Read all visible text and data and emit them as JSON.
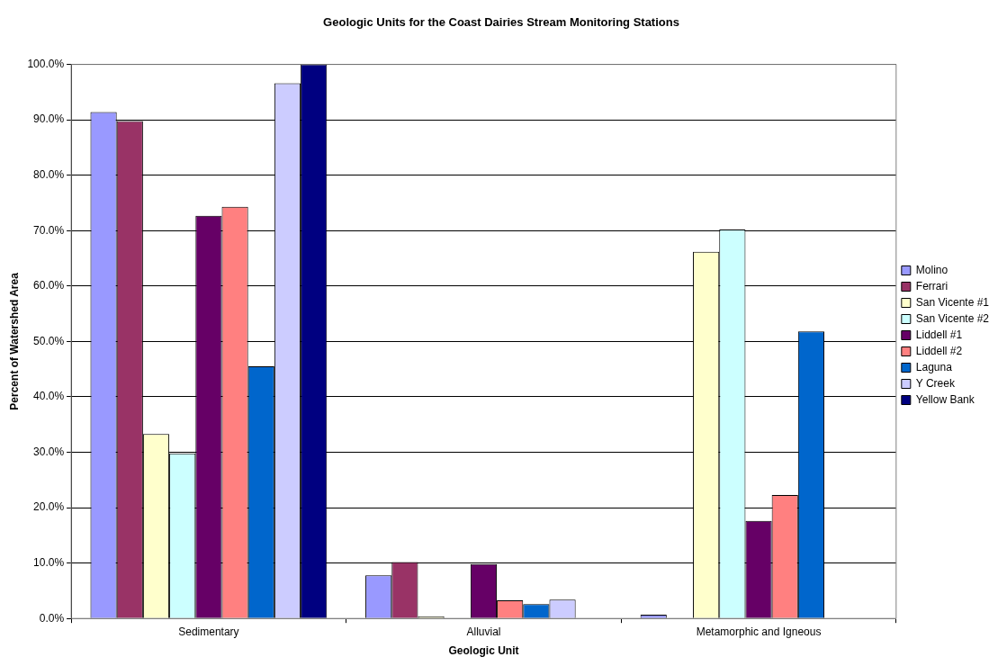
{
  "chart_data": {
    "type": "bar",
    "title": "Geologic Units for the Coast Dairies Stream Monitoring Stations",
    "xlabel": "Geologic Unit",
    "ylabel": "Percent of Watershed Area",
    "categories": [
      "Sedimentary",
      "Alluvial",
      "Metamorphic and Igneous"
    ],
    "series": [
      {
        "name": "Molino",
        "color": "#9999ff",
        "values": [
          91.4,
          7.8,
          0.7
        ]
      },
      {
        "name": "Ferrari",
        "color": "#993366",
        "values": [
          89.8,
          10.2,
          0
        ]
      },
      {
        "name": "San Vicente #1",
        "color": "#ffffcc",
        "values": [
          33.3,
          0.4,
          66.2
        ]
      },
      {
        "name": "San Vicente #2",
        "color": "#ccffff",
        "values": [
          29.8,
          0,
          70.2
        ]
      },
      {
        "name": "Liddell #1",
        "color": "#660066",
        "values": [
          72.7,
          9.8,
          17.6
        ]
      },
      {
        "name": "Liddell #2",
        "color": "#ff8080",
        "values": [
          74.3,
          3.3,
          22.3
        ]
      },
      {
        "name": "Laguna",
        "color": "#0066cc",
        "values": [
          45.5,
          2.6,
          51.8
        ]
      },
      {
        "name": "Y Creek",
        "color": "#ccccff",
        "values": [
          96.6,
          3.4,
          0
        ]
      },
      {
        "name": "Yellow Bank",
        "color": "#000080",
        "values": [
          100,
          0,
          0
        ]
      }
    ],
    "ylim": [
      0,
      100
    ],
    "yticks": [
      {
        "value": 0,
        "label": "0.0%"
      },
      {
        "value": 10,
        "label": "10.0%"
      },
      {
        "value": 20,
        "label": "20.0%"
      },
      {
        "value": 30,
        "label": "30.0%"
      },
      {
        "value": 40,
        "label": "40.0%"
      },
      {
        "value": 50,
        "label": "50.0%"
      },
      {
        "value": 60,
        "label": "60.0%"
      },
      {
        "value": 70,
        "label": "70.0%"
      },
      {
        "value": 80,
        "label": "80.0%"
      },
      {
        "value": 90,
        "label": "90.0%"
      },
      {
        "value": 100,
        "label": "100.0%"
      }
    ],
    "grid": "y",
    "legend": "right"
  }
}
